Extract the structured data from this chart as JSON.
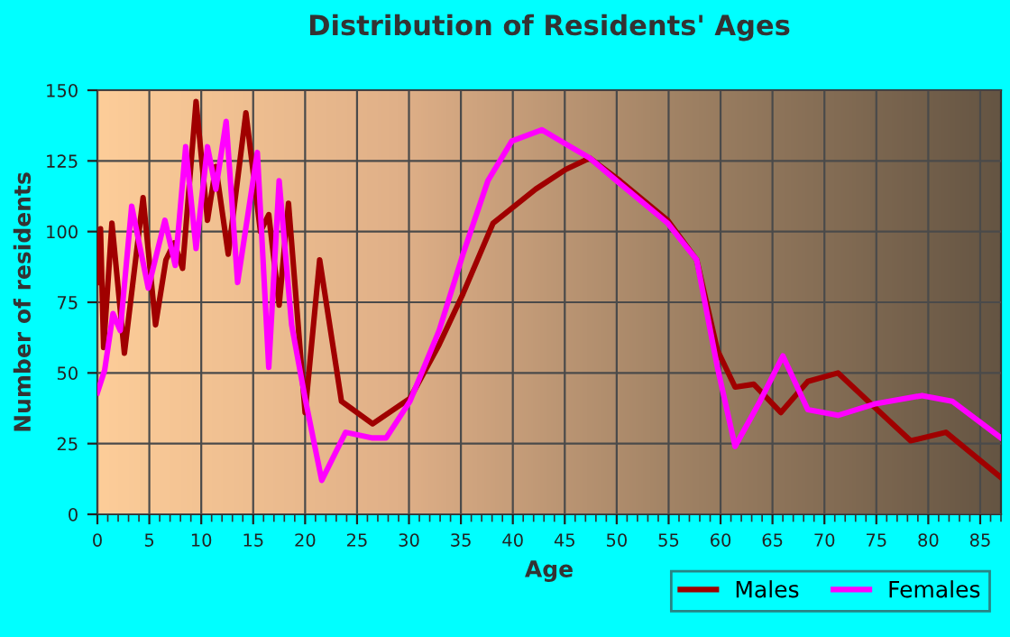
{
  "chart_data": {
    "type": "line",
    "title": "Distribution of Residents' Ages",
    "xlabel": "Age",
    "ylabel": "Number of residents",
    "xlim": [
      0,
      87
    ],
    "ylim": [
      0,
      150
    ],
    "xticks": [
      0,
      5,
      10,
      15,
      20,
      25,
      30,
      35,
      40,
      45,
      50,
      55,
      60,
      65,
      70,
      75,
      80,
      85
    ],
    "yticks": [
      0,
      25,
      50,
      75,
      100,
      125,
      150
    ],
    "grid": true,
    "legend": "bottom right",
    "marker": "none",
    "line_style": "solid",
    "series": [
      {
        "name": "Males",
        "color": "#a00000",
        "x": [
          0,
          0.3,
          0.6,
          1.4,
          2.6,
          4.4,
          5.6,
          6.6,
          7.4,
          8.2,
          9.5,
          10.6,
          11.4,
          12.6,
          14.3,
          15.7,
          16.5,
          17.5,
          18.4,
          20.0,
          21.4,
          23.5,
          26.5,
          30.1,
          32.9,
          35.2,
          38.1,
          42.2,
          45.1,
          47.4,
          50.3,
          54.9,
          57.7,
          59.7,
          61.4,
          63.2,
          65.8,
          68.4,
          71.3,
          74.8,
          78.3,
          81.7,
          87
        ],
        "values": [
          82,
          101,
          59,
          103,
          57,
          112,
          67,
          90,
          96,
          87,
          146,
          104,
          123,
          92,
          142,
          100,
          106,
          74,
          110,
          36,
          90,
          40,
          32,
          41,
          60,
          78,
          103,
          115,
          122,
          126,
          118,
          104,
          90,
          58,
          45,
          46,
          36,
          47,
          50,
          38,
          26,
          29,
          13
        ]
      },
      {
        "name": "Females",
        "color": "#ff00ff",
        "x": [
          0,
          0.7,
          1.5,
          2.2,
          3.3,
          4.9,
          6.5,
          7.5,
          8.5,
          9.5,
          10.6,
          11.4,
          12.4,
          13.5,
          15.4,
          16.5,
          17.5,
          18.7,
          20.0,
          21.6,
          23.9,
          26.5,
          27.8,
          30.1,
          32.9,
          35.2,
          37.6,
          39.9,
          42.8,
          45.1,
          47.4,
          50.3,
          54.9,
          57.7,
          59.7,
          61.4,
          63.8,
          66.0,
          68.4,
          71.3,
          74.8,
          79.4,
          82.3,
          87
        ],
        "values": [
          43,
          51,
          71,
          65,
          109,
          80,
          104,
          88,
          130,
          94,
          130,
          115,
          139,
          82,
          128,
          52,
          118,
          67,
          41,
          12,
          29,
          27,
          27,
          40,
          65,
          92,
          118,
          132,
          136,
          131,
          126,
          117,
          103,
          90,
          52,
          24,
          40,
          56,
          37,
          35,
          39,
          42,
          40,
          27
        ]
      }
    ]
  }
}
